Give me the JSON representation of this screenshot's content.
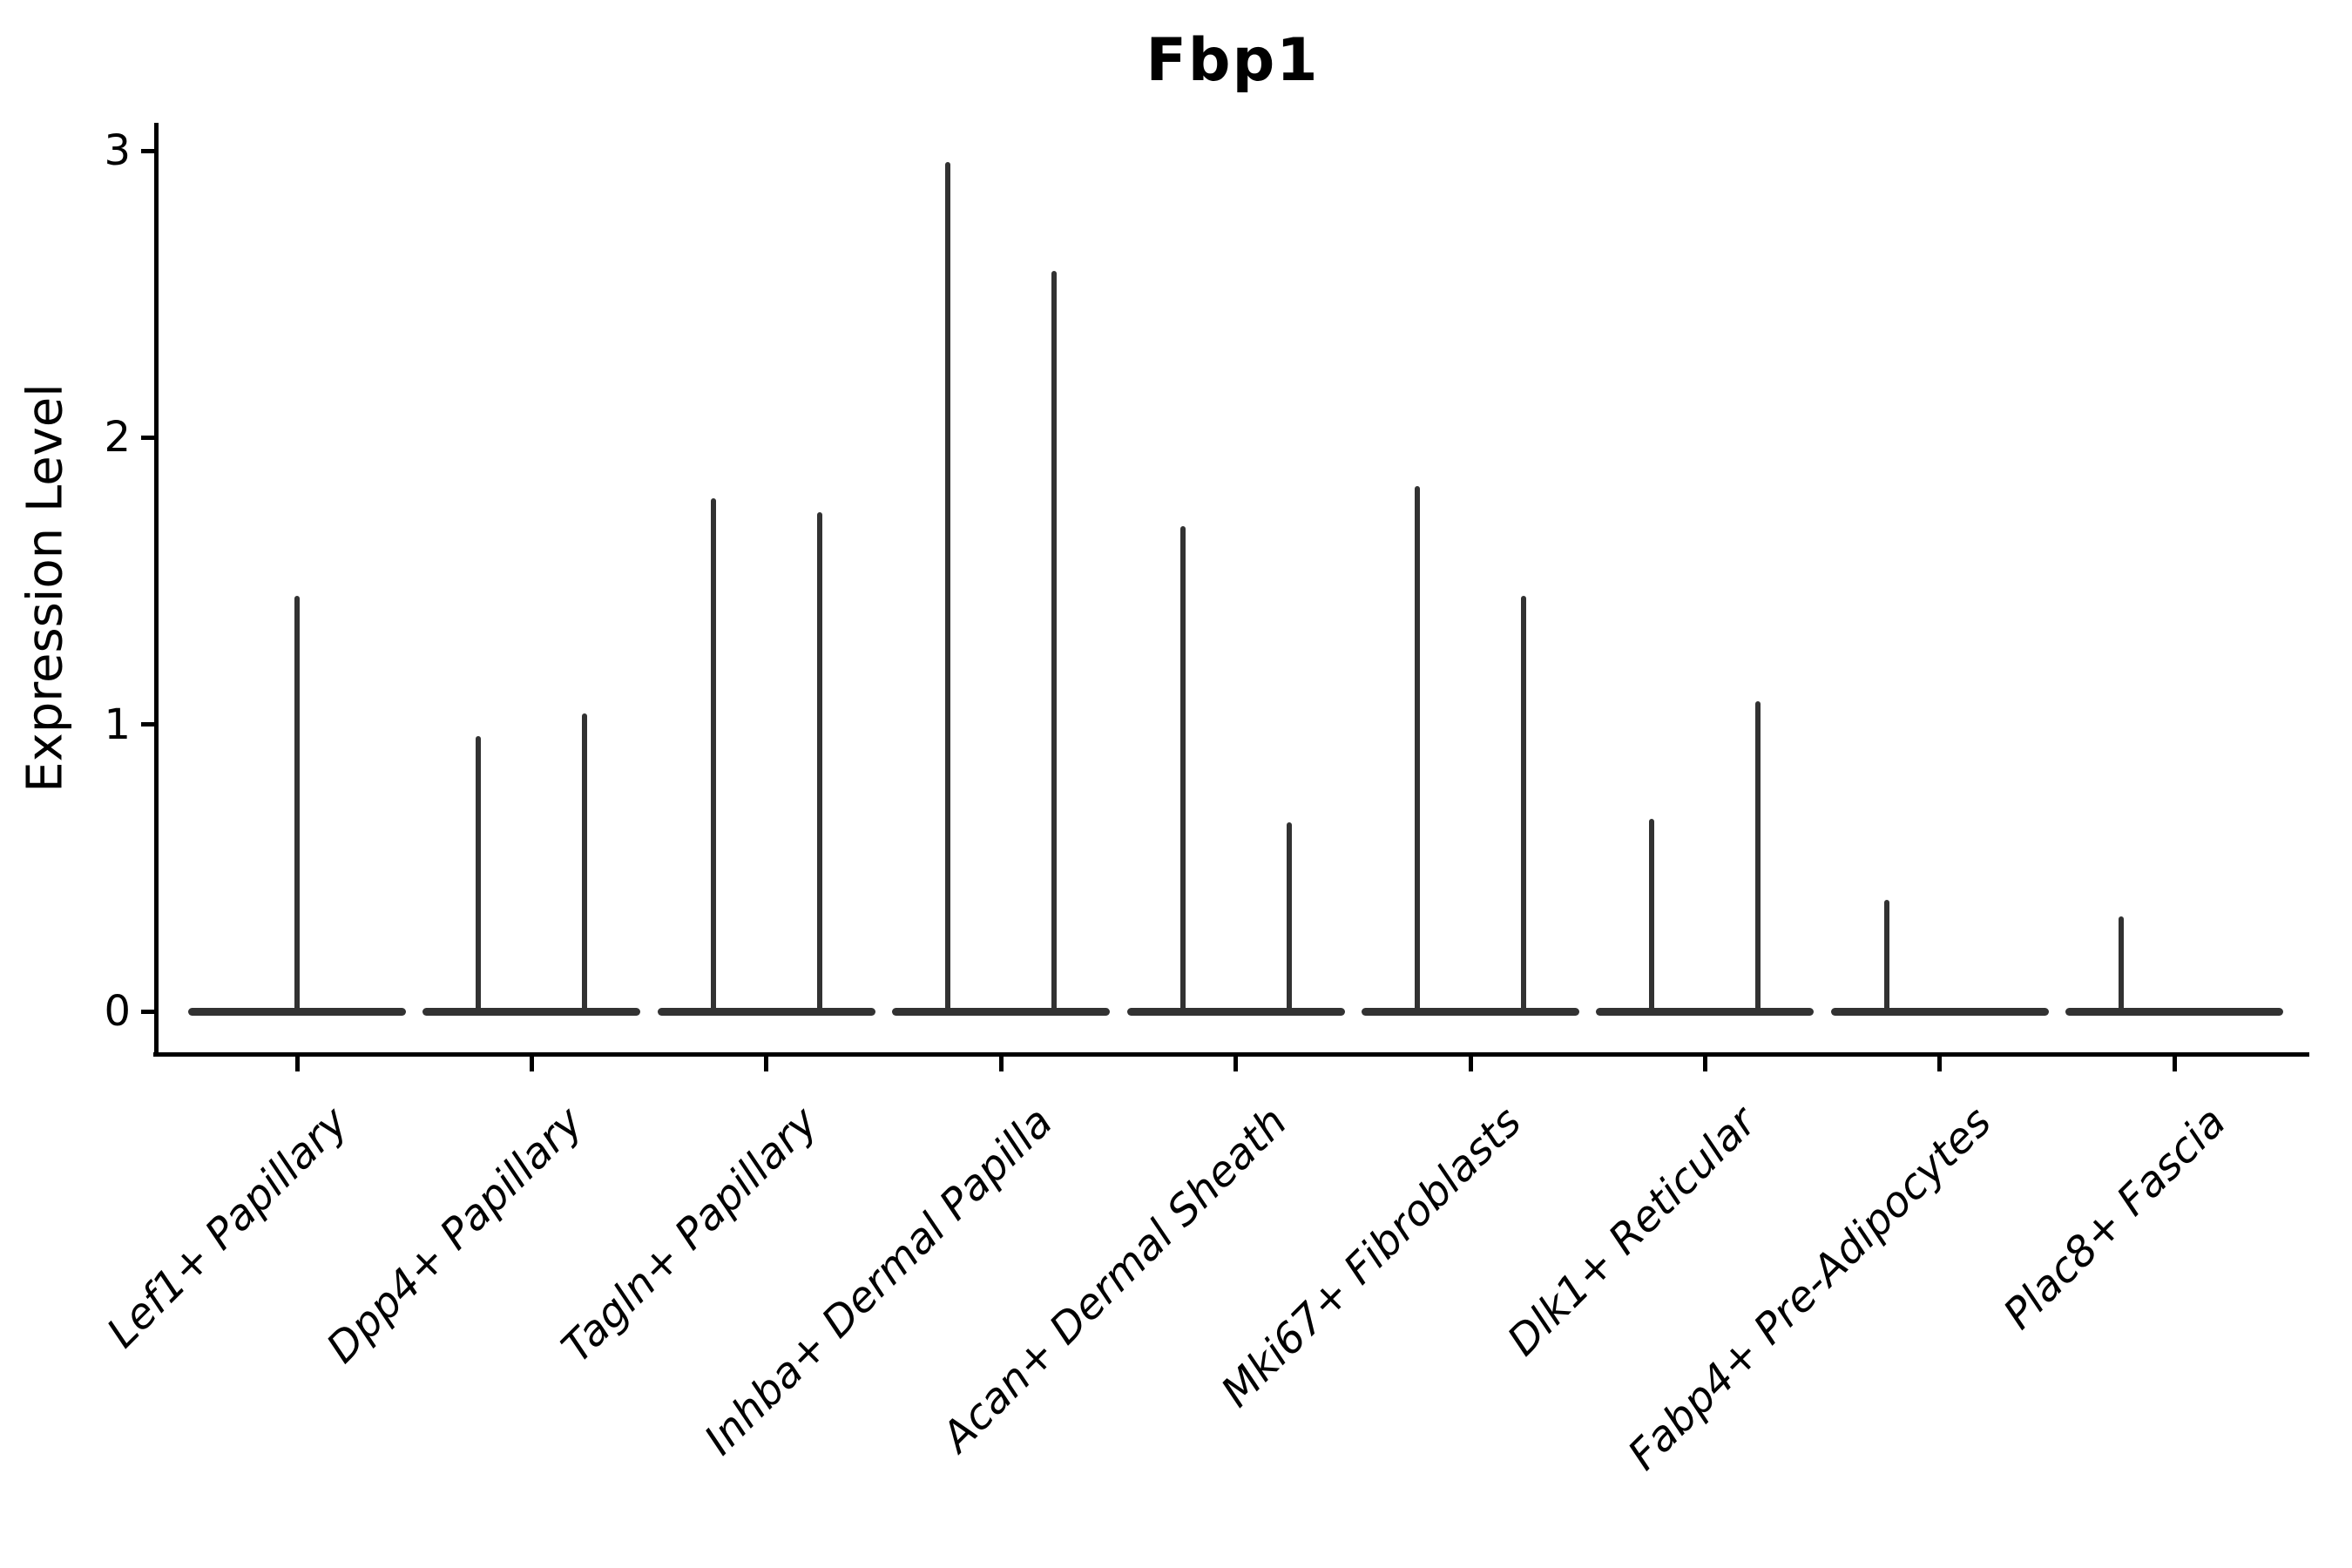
{
  "chart_data": {
    "type": "violin",
    "title": "Fbp1",
    "ylabel": "Expression Level",
    "xlabel": "",
    "y_ticks": [
      0,
      1,
      2,
      3
    ],
    "ylim": [
      -0.15,
      3.1
    ],
    "grid": false,
    "legend_position": "none",
    "x_tick_label_rotation": 45,
    "x_tick_label_style": "italic",
    "categories": [
      "Lef1+ Papillary",
      "Dpp4+ Papillary",
      "Tagln+ Papillary",
      "Inhba+ Dermal Papilla",
      "Acan+ Dermal Sheath",
      "Mki67+ Fibroblasts",
      "Dlk1+ Reticular",
      "Fabp4+ Pre-Adipocytes",
      "Plac8+ Fascia"
    ],
    "baseline_value": 0,
    "series": [
      {
        "category": "Lef1+ Papillary",
        "violins": [
          {
            "position": "center",
            "spike_value": 1.45
          }
        ]
      },
      {
        "category": "Dpp4+ Papillary",
        "violins": [
          {
            "position": "left",
            "spike_value": 0.96
          },
          {
            "position": "right",
            "spike_value": 1.04
          }
        ]
      },
      {
        "category": "Tagln+ Papillary",
        "violins": [
          {
            "position": "left",
            "spike_value": 1.79
          },
          {
            "position": "right",
            "spike_value": 1.74
          }
        ]
      },
      {
        "category": "Inhba+ Dermal Papilla",
        "violins": [
          {
            "position": "left",
            "spike_value": 2.96
          },
          {
            "position": "right",
            "spike_value": 2.58
          }
        ]
      },
      {
        "category": "Acan+ Dermal Sheath",
        "violins": [
          {
            "position": "left",
            "spike_value": 1.69
          },
          {
            "position": "right",
            "spike_value": 0.66
          }
        ]
      },
      {
        "category": "Mki67+ Fibroblasts",
        "violins": [
          {
            "position": "left",
            "spike_value": 1.83
          },
          {
            "position": "right",
            "spike_value": 1.45
          }
        ]
      },
      {
        "category": "Dlk1+ Reticular",
        "violins": [
          {
            "position": "left",
            "spike_value": 0.67
          },
          {
            "position": "right",
            "spike_value": 1.08
          }
        ]
      },
      {
        "category": "Fabp4+ Pre-Adipocytes",
        "violins": [
          {
            "position": "left",
            "spike_value": 0.39
          },
          {
            "position": "right",
            "spike_value": 0
          }
        ]
      },
      {
        "category": "Plac8+ Fascia",
        "violins": [
          {
            "position": "left",
            "spike_value": 0.33
          },
          {
            "position": "right",
            "spike_value": 0
          }
        ]
      }
    ]
  },
  "styles": {
    "violin_color": "#323232",
    "axis_color": "#000000",
    "text_color": "#000000",
    "background_color": "#ffffff"
  }
}
